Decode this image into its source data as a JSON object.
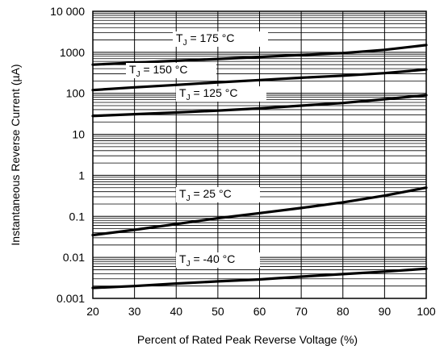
{
  "chart_data": {
    "type": "line",
    "title": "",
    "xlabel": "Percent of Rated Peak Reverse Voltage (%)",
    "ylabel": "Instantaneous Reverse Current (µA)",
    "xlim": [
      20,
      100
    ],
    "ylim": [
      0.001,
      10000
    ],
    "y_scale": "log",
    "grid": true,
    "x_ticks": [
      {
        "value": 20,
        "label": "20"
      },
      {
        "value": 30,
        "label": "30"
      },
      {
        "value": 40,
        "label": "40"
      },
      {
        "value": 50,
        "label": "50"
      },
      {
        "value": 60,
        "label": "60"
      },
      {
        "value": 70,
        "label": "70"
      },
      {
        "value": 80,
        "label": "80"
      },
      {
        "value": 90,
        "label": "90"
      },
      {
        "value": 100,
        "label": "100"
      }
    ],
    "y_ticks": [
      {
        "value": 10000,
        "label": "10 000"
      },
      {
        "value": 1000,
        "label": "1000"
      },
      {
        "value": 100,
        "label": "100"
      },
      {
        "value": 10,
        "label": "10"
      },
      {
        "value": 1,
        "label": "1"
      },
      {
        "value": 0.1,
        "label": "0.1"
      },
      {
        "value": 0.01,
        "label": "0.01"
      },
      {
        "value": 0.001,
        "label": "0.001"
      }
    ],
    "series": [
      {
        "name": "TJ = 175 °C",
        "label_main": "T",
        "label_sub": "J",
        "label_rest": " = 175 °C",
        "x": [
          20,
          30,
          40,
          50,
          60,
          70,
          80,
          90,
          100
        ],
        "y": [
          500,
          560,
          620,
          690,
          770,
          860,
          960,
          1150,
          1500
        ]
      },
      {
        "name": "TJ = 150 °C",
        "label_main": "T",
        "label_sub": "J",
        "label_rest": " = 150 °C",
        "x": [
          20,
          30,
          40,
          50,
          60,
          70,
          80,
          90,
          100
        ],
        "y": [
          120,
          140,
          160,
          185,
          210,
          240,
          270,
          310,
          380
        ]
      },
      {
        "name": "TJ = 125 °C",
        "label_main": "T",
        "label_sub": "J",
        "label_rest": " = 125 °C",
        "x": [
          20,
          30,
          40,
          50,
          60,
          70,
          80,
          90,
          100
        ],
        "y": [
          28,
          31,
          34,
          38,
          43,
          50,
          58,
          72,
          90
        ]
      },
      {
        "name": "TJ = 25 °C",
        "label_main": "T",
        "label_sub": "J",
        "label_rest": " = 25 °C",
        "x": [
          20,
          30,
          40,
          50,
          60,
          70,
          80,
          90,
          100
        ],
        "y": [
          0.035,
          0.047,
          0.065,
          0.09,
          0.12,
          0.16,
          0.22,
          0.32,
          0.5
        ]
      },
      {
        "name": "TJ = -40 °C",
        "label_main": "T",
        "label_sub": "J",
        "label_rest": " = -40 °C",
        "x": [
          20,
          30,
          40,
          50,
          60,
          70,
          80,
          90,
          100
        ],
        "y": [
          0.0018,
          0.002,
          0.0023,
          0.0026,
          0.0029,
          0.0034,
          0.0039,
          0.0045,
          0.0053
        ]
      }
    ]
  }
}
